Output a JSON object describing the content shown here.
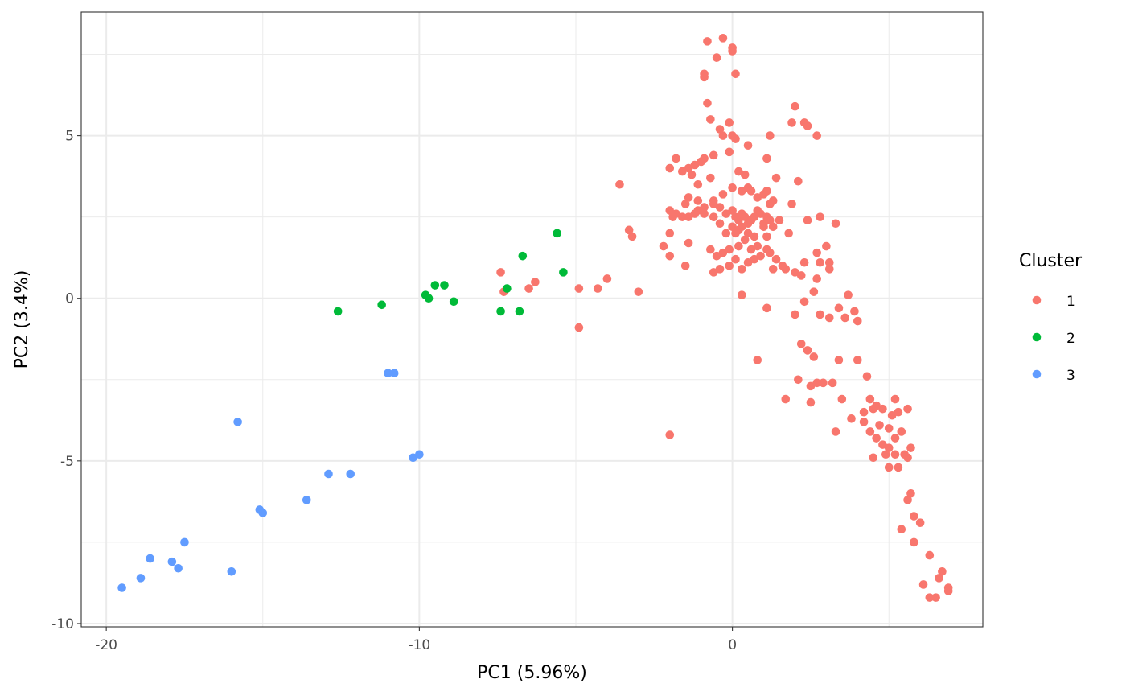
{
  "chart_data": {
    "type": "scatter",
    "title": "",
    "xlabel": "PC1 (5.96%)",
    "ylabel": "PC2 (3.4%)",
    "xlim": [
      -20.8,
      8.0
    ],
    "ylim": [
      -10.1,
      8.8
    ],
    "x_ticks": [
      -20,
      -10,
      0
    ],
    "x_tick_labels": [
      "-20",
      "-10",
      "0"
    ],
    "y_ticks": [
      -10,
      -5,
      0,
      5
    ],
    "y_tick_labels": [
      "-10",
      "-5",
      "0",
      "5"
    ],
    "grid": true,
    "legend": {
      "title": "Cluster",
      "placement": "right",
      "entries": [
        {
          "label": "1",
          "color": "#F8766D"
        },
        {
          "label": "2",
          "color": "#00BA38"
        },
        {
          "label": "3",
          "color": "#619CFF"
        }
      ]
    },
    "series": [
      {
        "name": "1",
        "color": "#F8766D",
        "points": [
          [
            -0.8,
            7.9
          ],
          [
            -0.3,
            8.0
          ],
          [
            0.0,
            7.7
          ],
          [
            0.0,
            7.6
          ],
          [
            -0.5,
            7.4
          ],
          [
            -0.9,
            6.9
          ],
          [
            -0.9,
            6.8
          ],
          [
            0.1,
            6.9
          ],
          [
            -0.8,
            6.0
          ],
          [
            -0.7,
            5.5
          ],
          [
            -0.4,
            5.2
          ],
          [
            -0.3,
            5.0
          ],
          [
            0.0,
            5.0
          ],
          [
            0.1,
            4.9
          ],
          [
            0.5,
            4.7
          ],
          [
            -0.1,
            5.4
          ],
          [
            1.2,
            5.0
          ],
          [
            -0.1,
            4.5
          ],
          [
            -0.6,
            4.4
          ],
          [
            -0.9,
            4.3
          ],
          [
            -1.0,
            4.2
          ],
          [
            -1.4,
            4.0
          ],
          [
            -1.3,
            3.8
          ],
          [
            -1.6,
            3.9
          ],
          [
            -1.8,
            4.3
          ],
          [
            -2.0,
            4.0
          ],
          [
            -1.2,
            4.1
          ],
          [
            0.2,
            3.9
          ],
          [
            0.4,
            3.8
          ],
          [
            1.1,
            4.3
          ],
          [
            -0.7,
            3.7
          ],
          [
            -1.1,
            3.5
          ],
          [
            -1.4,
            3.1
          ],
          [
            -1.1,
            3.0
          ],
          [
            -0.6,
            3.0
          ],
          [
            -0.3,
            3.2
          ],
          [
            0.0,
            3.4
          ],
          [
            0.3,
            3.3
          ],
          [
            0.5,
            3.4
          ],
          [
            0.6,
            3.3
          ],
          [
            0.8,
            3.1
          ],
          [
            1.0,
            3.2
          ],
          [
            1.1,
            3.3
          ],
          [
            1.2,
            2.9
          ],
          [
            1.3,
            3.0
          ],
          [
            -1.5,
            2.9
          ],
          [
            -0.9,
            2.8
          ],
          [
            -1.4,
            2.5
          ],
          [
            -1.6,
            2.5
          ],
          [
            -1.8,
            2.6
          ],
          [
            -1.9,
            2.5
          ],
          [
            -2.0,
            2.7
          ],
          [
            -1.2,
            2.6
          ],
          [
            -0.6,
            2.5
          ],
          [
            -0.4,
            2.8
          ],
          [
            -0.2,
            2.6
          ],
          [
            0.0,
            2.7
          ],
          [
            0.1,
            2.5
          ],
          [
            0.2,
            2.4
          ],
          [
            0.3,
            2.6
          ],
          [
            0.4,
            2.5
          ],
          [
            0.5,
            2.3
          ],
          [
            0.6,
            2.4
          ],
          [
            0.7,
            2.5
          ],
          [
            0.8,
            2.7
          ],
          [
            0.9,
            2.6
          ],
          [
            1.0,
            2.3
          ],
          [
            1.1,
            2.5
          ],
          [
            1.2,
            2.4
          ],
          [
            1.3,
            2.2
          ],
          [
            0.2,
            2.1
          ],
          [
            0.5,
            2.0
          ],
          [
            0.7,
            1.9
          ],
          [
            1.0,
            2.2
          ],
          [
            1.1,
            1.9
          ],
          [
            -0.2,
            2.0
          ],
          [
            -0.4,
            2.3
          ],
          [
            -1.1,
            2.7
          ],
          [
            -0.6,
            2.9
          ],
          [
            -0.9,
            2.6
          ],
          [
            0.0,
            2.2
          ],
          [
            0.4,
            1.8
          ],
          [
            0.8,
            1.6
          ],
          [
            1.1,
            1.5
          ],
          [
            1.2,
            1.4
          ],
          [
            0.6,
            1.5
          ],
          [
            0.2,
            1.6
          ],
          [
            -0.1,
            1.5
          ],
          [
            -0.3,
            1.4
          ],
          [
            0.1,
            1.2
          ],
          [
            0.5,
            1.1
          ],
          [
            0.7,
            1.2
          ],
          [
            0.9,
            1.3
          ],
          [
            1.4,
            1.2
          ],
          [
            1.6,
            1.0
          ],
          [
            1.3,
            0.9
          ],
          [
            1.7,
            0.9
          ],
          [
            0.3,
            0.9
          ],
          [
            -0.1,
            1.0
          ],
          [
            -0.4,
            0.9
          ],
          [
            -0.6,
            0.8
          ],
          [
            -1.4,
            1.7
          ],
          [
            -1.5,
            1.0
          ],
          [
            -2.0,
            1.3
          ],
          [
            -2.2,
            1.6
          ],
          [
            -2.0,
            2.0
          ],
          [
            0.1,
            2.0
          ],
          [
            0.3,
            2.2
          ],
          [
            -0.5,
            1.3
          ],
          [
            -0.7,
            1.5
          ],
          [
            1.4,
            3.7
          ],
          [
            1.9,
            5.4
          ],
          [
            2.0,
            5.9
          ],
          [
            2.3,
            5.4
          ],
          [
            2.4,
            5.3
          ],
          [
            2.7,
            5.0
          ],
          [
            2.1,
            3.6
          ],
          [
            1.9,
            2.9
          ],
          [
            1.5,
            2.4
          ],
          [
            1.8,
            2.0
          ],
          [
            2.4,
            2.4
          ],
          [
            2.8,
            2.5
          ],
          [
            3.3,
            2.3
          ],
          [
            3.0,
            1.6
          ],
          [
            2.7,
            1.4
          ],
          [
            2.3,
            1.1
          ],
          [
            2.0,
            0.8
          ],
          [
            2.2,
            0.7
          ],
          [
            2.8,
            1.1
          ],
          [
            3.1,
            1.1
          ],
          [
            3.1,
            0.9
          ],
          [
            2.7,
            0.6
          ],
          [
            3.7,
            0.1
          ],
          [
            3.4,
            -0.3
          ],
          [
            2.6,
            0.2
          ],
          [
            2.3,
            -0.1
          ],
          [
            2.0,
            -0.5
          ],
          [
            2.8,
            -0.5
          ],
          [
            3.1,
            -0.6
          ],
          [
            3.6,
            -0.6
          ],
          [
            4.0,
            -0.7
          ],
          [
            3.9,
            -0.4
          ],
          [
            1.1,
            -0.3
          ],
          [
            0.3,
            0.1
          ],
          [
            0.8,
            -1.9
          ],
          [
            2.2,
            -1.4
          ],
          [
            2.4,
            -1.6
          ],
          [
            2.6,
            -1.8
          ],
          [
            3.4,
            -1.9
          ],
          [
            4.0,
            -1.9
          ],
          [
            2.1,
            -2.5
          ],
          [
            2.5,
            -2.7
          ],
          [
            2.7,
            -2.6
          ],
          [
            2.9,
            -2.6
          ],
          [
            3.2,
            -2.6
          ],
          [
            1.7,
            -3.1
          ],
          [
            2.5,
            -3.2
          ],
          [
            3.5,
            -3.1
          ],
          [
            4.4,
            -3.1
          ],
          [
            5.2,
            -3.1
          ],
          [
            3.3,
            -4.1
          ],
          [
            3.8,
            -3.7
          ],
          [
            4.2,
            -3.5
          ],
          [
            4.5,
            -3.4
          ],
          [
            4.8,
            -3.4
          ],
          [
            5.1,
            -3.6
          ],
          [
            5.3,
            -3.5
          ],
          [
            5.6,
            -3.4
          ],
          [
            4.4,
            -4.1
          ],
          [
            4.6,
            -4.3
          ],
          [
            4.8,
            -4.5
          ],
          [
            5.0,
            -4.6
          ],
          [
            5.2,
            -4.3
          ],
          [
            5.4,
            -4.1
          ],
          [
            5.7,
            -4.6
          ],
          [
            4.5,
            -4.9
          ],
          [
            4.9,
            -4.8
          ],
          [
            5.2,
            -4.8
          ],
          [
            5.5,
            -4.8
          ],
          [
            5.0,
            -5.2
          ],
          [
            5.3,
            -5.2
          ],
          [
            4.2,
            -3.8
          ],
          [
            4.7,
            -3.9
          ],
          [
            5.0,
            -4.0
          ],
          [
            4.6,
            -3.3
          ],
          [
            4.3,
            -2.4
          ],
          [
            5.6,
            -4.9
          ],
          [
            5.7,
            -6.0
          ],
          [
            5.6,
            -6.2
          ],
          [
            5.8,
            -6.7
          ],
          [
            5.4,
            -7.1
          ],
          [
            6.0,
            -6.9
          ],
          [
            5.8,
            -7.5
          ],
          [
            6.3,
            -7.9
          ],
          [
            6.7,
            -8.4
          ],
          [
            6.6,
            -8.6
          ],
          [
            6.9,
            -8.9
          ],
          [
            6.9,
            -9.0
          ],
          [
            6.1,
            -8.8
          ],
          [
            6.5,
            -9.2
          ],
          [
            6.3,
            -9.2
          ],
          [
            -2.0,
            -4.2
          ],
          [
            -7.4,
            0.8
          ],
          [
            -7.3,
            0.2
          ],
          [
            -6.5,
            0.3
          ],
          [
            -6.3,
            0.5
          ],
          [
            -4.9,
            0.3
          ],
          [
            -4.3,
            0.3
          ],
          [
            -4.0,
            0.6
          ],
          [
            -3.0,
            0.2
          ],
          [
            -3.3,
            2.1
          ],
          [
            -3.2,
            1.9
          ],
          [
            -3.6,
            3.5
          ],
          [
            -4.9,
            -0.9
          ]
        ]
      },
      {
        "name": "2",
        "color": "#00BA38",
        "points": [
          [
            -12.6,
            -0.4
          ],
          [
            -11.2,
            -0.2
          ],
          [
            -9.8,
            0.1
          ],
          [
            -9.7,
            0.0
          ],
          [
            -9.5,
            0.4
          ],
          [
            -9.2,
            0.4
          ],
          [
            -8.9,
            -0.1
          ],
          [
            -7.4,
            -0.4
          ],
          [
            -7.2,
            0.3
          ],
          [
            -6.8,
            -0.4
          ],
          [
            -6.7,
            1.3
          ],
          [
            -5.6,
            2.0
          ],
          [
            -5.4,
            0.8
          ]
        ]
      },
      {
        "name": "3",
        "color": "#619CFF",
        "points": [
          [
            -19.5,
            -8.9
          ],
          [
            -18.9,
            -8.6
          ],
          [
            -18.6,
            -8.0
          ],
          [
            -17.9,
            -8.1
          ],
          [
            -17.7,
            -8.3
          ],
          [
            -17.5,
            -7.5
          ],
          [
            -16.0,
            -8.4
          ],
          [
            -15.8,
            -3.8
          ],
          [
            -15.1,
            -6.5
          ],
          [
            -15.0,
            -6.6
          ],
          [
            -13.6,
            -6.2
          ],
          [
            -12.9,
            -5.4
          ],
          [
            -12.2,
            -5.4
          ],
          [
            -11.0,
            -2.3
          ],
          [
            -10.8,
            -2.3
          ],
          [
            -10.2,
            -4.9
          ],
          [
            -10.0,
            -4.8
          ]
        ]
      }
    ]
  }
}
